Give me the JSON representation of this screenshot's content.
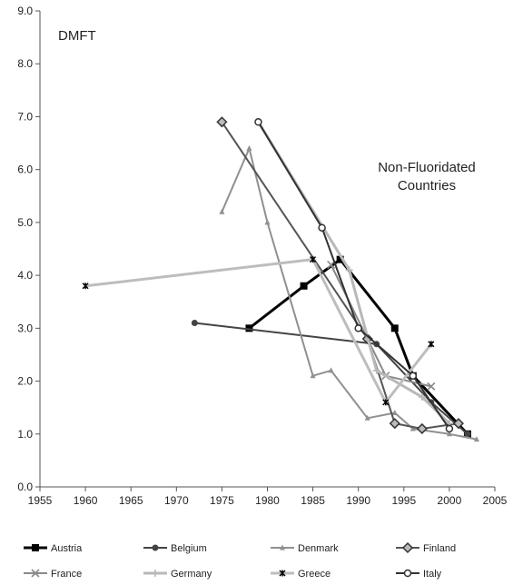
{
  "chart_data": {
    "type": "line",
    "ylabel": "DMFT",
    "annotation": [
      "Non-Fluoridated",
      "Countries"
    ],
    "xlim": [
      1955,
      2005
    ],
    "ylim": [
      0,
      9
    ],
    "x_ticks": [
      "1955",
      "1960",
      "1965",
      "1970",
      "1975",
      "1980",
      "1985",
      "1990",
      "1995",
      "2000",
      "2005"
    ],
    "y_ticks": [
      "0.0",
      "1.0",
      "2.0",
      "3.0",
      "4.0",
      "5.0",
      "6.0",
      "7.0",
      "8.0",
      "9.0"
    ],
    "grid": false,
    "legend_position": "bottom",
    "series": [
      {
        "name": "Austria",
        "color": "#000000",
        "width": 3,
        "marker": "square",
        "points": [
          [
            1978,
            3.0
          ],
          [
            1984,
            3.8
          ],
          [
            1988,
            4.3
          ],
          [
            1994,
            3.0
          ],
          [
            1996,
            2.1
          ],
          [
            2002,
            1.0
          ]
        ]
      },
      {
        "name": "Belgium",
        "color": "#444444",
        "width": 2,
        "marker": "circle",
        "points": [
          [
            1972,
            3.1
          ],
          [
            1992,
            2.7
          ],
          [
            1998,
            1.6
          ],
          [
            2002,
            1.0
          ]
        ]
      },
      {
        "name": "Denmark",
        "color": "#909090",
        "width": 2,
        "marker": "triangle",
        "points": [
          [
            1975,
            5.2
          ],
          [
            1978,
            6.4
          ],
          [
            1980,
            5.0
          ],
          [
            1985,
            2.1
          ],
          [
            1987,
            2.2
          ],
          [
            1991,
            1.3
          ],
          [
            1994,
            1.4
          ],
          [
            1996,
            1.1
          ],
          [
            2000,
            1.0
          ],
          [
            2003,
            0.9
          ]
        ]
      },
      {
        "name": "Finland",
        "color": "#555555",
        "width": 2,
        "marker": "diamond",
        "points": [
          [
            1975,
            6.9
          ],
          [
            1991,
            2.8
          ],
          [
            1994,
            1.2
          ],
          [
            1997,
            1.1
          ],
          [
            2001,
            1.2
          ]
        ]
      },
      {
        "name": "France",
        "color": "#8a8a8a",
        "width": 2,
        "marker": "x",
        "points": [
          [
            1987,
            4.2
          ],
          [
            1993,
            2.1
          ],
          [
            1998,
            1.9
          ]
        ]
      },
      {
        "name": "Germany",
        "color": "#b8b8b8",
        "width": 3,
        "marker": "plus",
        "points": [
          [
            1979,
            6.9
          ],
          [
            1989,
            4.1
          ],
          [
            1992,
            2.2
          ],
          [
            1997,
            1.7
          ],
          [
            2000,
            1.2
          ]
        ]
      },
      {
        "name": "Greece",
        "color": "#bdbdbd",
        "width": 3,
        "marker": "star",
        "points": [
          [
            1960,
            3.8
          ],
          [
            1985,
            4.3
          ],
          [
            1993,
            1.6
          ],
          [
            1998,
            2.7
          ]
        ]
      },
      {
        "name": "Italy",
        "color": "#333333",
        "width": 2,
        "marker": "circle-open",
        "points": [
          [
            1979,
            6.9
          ],
          [
            1986,
            4.9
          ],
          [
            1990,
            3.0
          ],
          [
            1996,
            2.1
          ],
          [
            2000,
            1.1
          ]
        ]
      }
    ]
  }
}
